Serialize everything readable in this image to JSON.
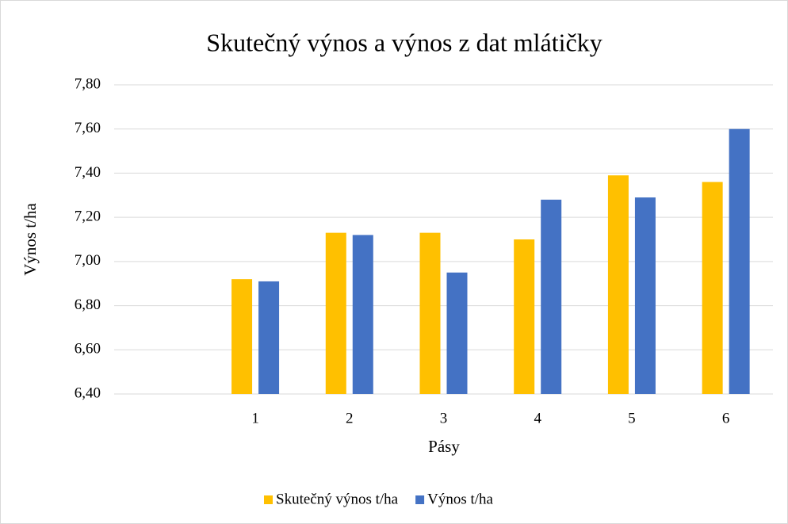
{
  "chart_data": {
    "type": "bar",
    "title": "Skutečný výnos a výnos z dat mlátičky",
    "x_label": "Pásy",
    "y_label": "Výnos t/ha",
    "categories": [
      null,
      "1",
      "2",
      "3",
      "4",
      "5",
      "6"
    ],
    "series": [
      {
        "name": "Skutečný výnos t/ha",
        "color": "#ffc000",
        "values": [
          null,
          6.92,
          7.13,
          7.13,
          7.1,
          7.39,
          7.36
        ]
      },
      {
        "name": "Výnos t/ha",
        "color": "#4472c4",
        "values": [
          null,
          6.91,
          7.12,
          6.95,
          7.28,
          7.29,
          7.6
        ]
      }
    ],
    "ylim": [
      6.4,
      7.8
    ],
    "yticks": [
      {
        "value": 6.4,
        "label": "6,40"
      },
      {
        "value": 6.6,
        "label": "6,60"
      },
      {
        "value": 6.8,
        "label": "6,80"
      },
      {
        "value": 7.0,
        "label": "7,00"
      },
      {
        "value": 7.2,
        "label": "7,20"
      },
      {
        "value": 7.4,
        "label": "7,40"
      },
      {
        "value": 7.6,
        "label": "7,60"
      },
      {
        "value": 7.8,
        "label": "7,80"
      }
    ],
    "grid": true,
    "legend": "bottom"
  }
}
